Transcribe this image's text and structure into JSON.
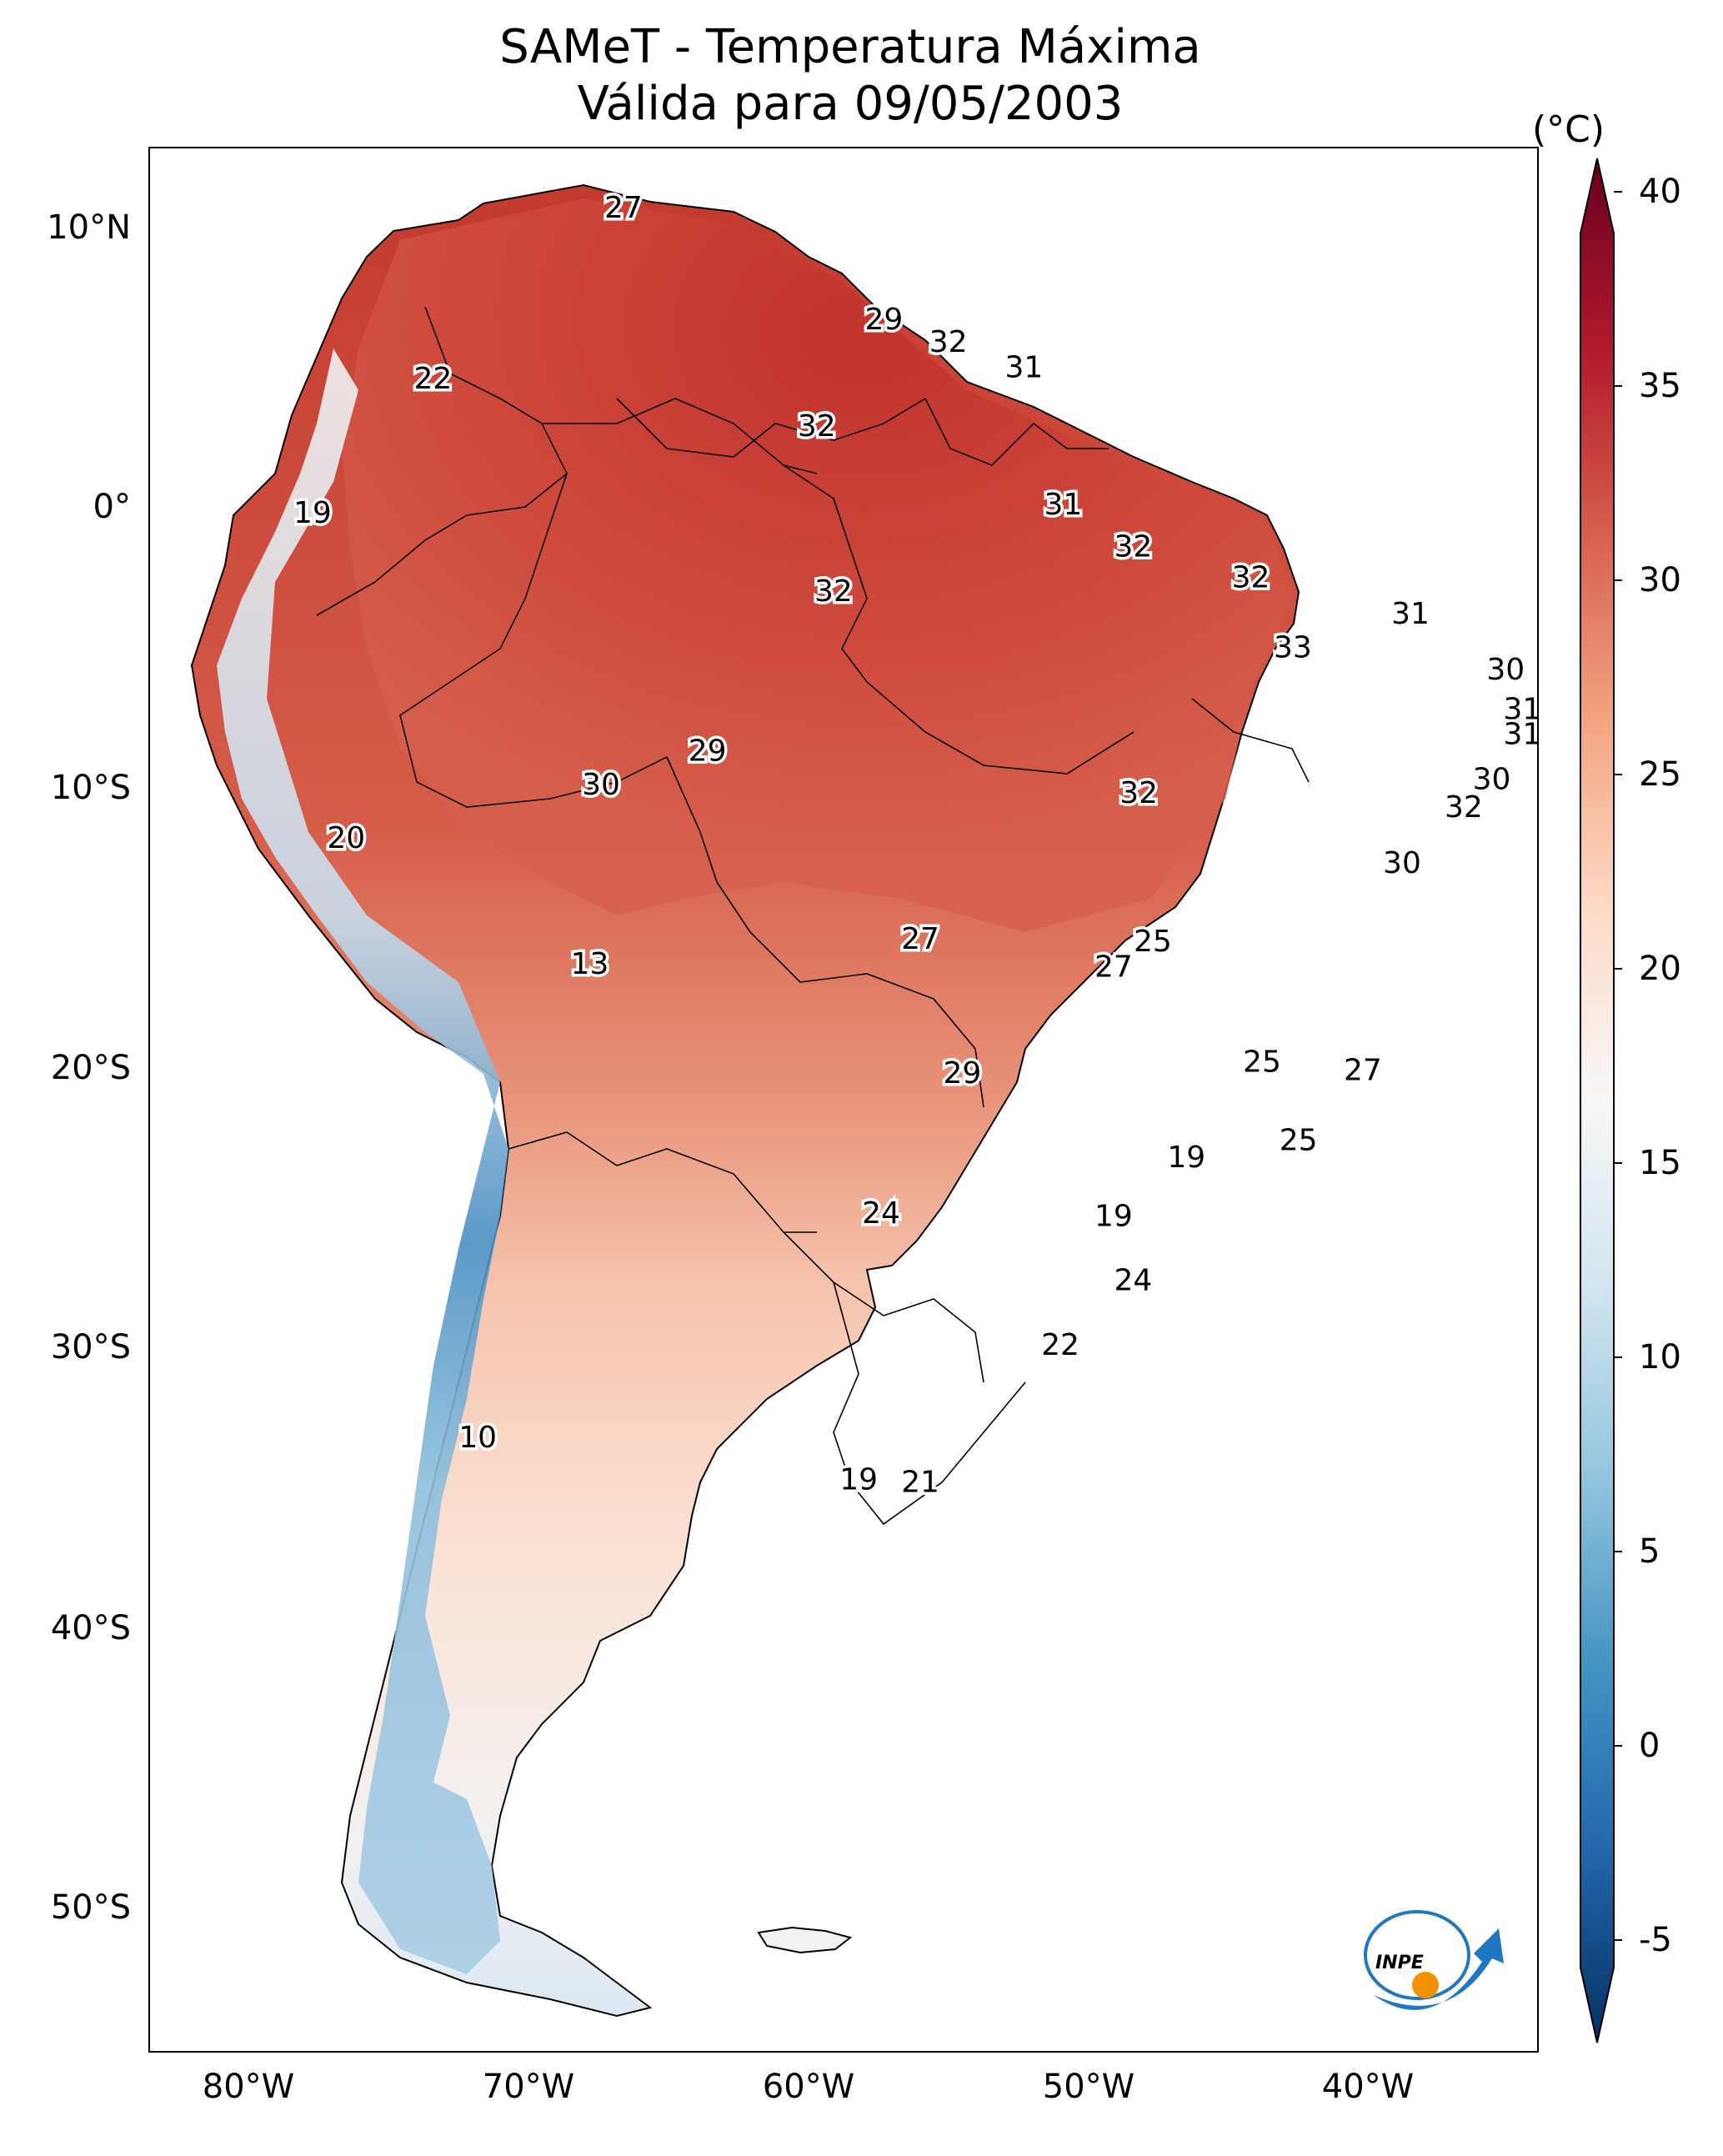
{
  "title": {
    "line1": "SAMeT - Temperatura Máxima",
    "line2": "Válida para 09/05/2003"
  },
  "colorbar": {
    "unit": "(°C)",
    "ticks": [
      "-5",
      "0",
      "5",
      "10",
      "15",
      "20",
      "25",
      "30",
      "35",
      "40"
    ],
    "min": -7,
    "max": 42,
    "colors": [
      "#053061",
      "#2166ac",
      "#4393c3",
      "#92c5de",
      "#d1e5f0",
      "#f7f7f7",
      "#fddbc7",
      "#f4a582",
      "#d6604d",
      "#b2182b",
      "#67001f"
    ]
  },
  "axes": {
    "lat_labels": [
      "10°N",
      "0°",
      "10°S",
      "20°S",
      "30°S",
      "40°S",
      "50°S"
    ],
    "lon_labels": [
      "80°W",
      "70°W",
      "60°W",
      "50°W",
      "40°W"
    ]
  },
  "map_labels": [
    {
      "text": "27",
      "lon": -66.7,
      "lat": 10.6
    },
    {
      "text": "22",
      "lon": -73.5,
      "lat": 4.5
    },
    {
      "text": "29",
      "lon": -57.4,
      "lat": 6.6
    },
    {
      "text": "32",
      "lon": -55.1,
      "lat": 5.8
    },
    {
      "text": "31",
      "lon": -52.4,
      "lat": 4.9
    },
    {
      "text": "32",
      "lon": -59.8,
      "lat": 2.8
    },
    {
      "text": "19",
      "lon": -77.8,
      "lat": -0.3
    },
    {
      "text": "31",
      "lon": -51.0,
      "lat": 0.0
    },
    {
      "text": "32",
      "lon": -48.5,
      "lat": -1.5
    },
    {
      "text": "32",
      "lon": -59.2,
      "lat": -3.1
    },
    {
      "text": "32",
      "lon": -44.3,
      "lat": -2.6
    },
    {
      "text": "31",
      "lon": -38.6,
      "lat": -3.9
    },
    {
      "text": "33",
      "lon": -42.8,
      "lat": -5.1
    },
    {
      "text": "30",
      "lon": -35.2,
      "lat": -5.9
    },
    {
      "text": "31",
      "lon": -34.6,
      "lat": -7.3
    },
    {
      "text": "31",
      "lon": -34.6,
      "lat": -8.2
    },
    {
      "text": "29",
      "lon": -63.7,
      "lat": -8.8
    },
    {
      "text": "30",
      "lon": -67.5,
      "lat": -10.0
    },
    {
      "text": "32",
      "lon": -48.3,
      "lat": -10.3
    },
    {
      "text": "30",
      "lon": -35.7,
      "lat": -9.8
    },
    {
      "text": "32",
      "lon": -36.7,
      "lat": -10.8
    },
    {
      "text": "20",
      "lon": -76.6,
      "lat": -11.9
    },
    {
      "text": "30",
      "lon": -38.9,
      "lat": -12.8
    },
    {
      "text": "27",
      "lon": -56.1,
      "lat": -15.5
    },
    {
      "text": "25",
      "lon": -47.8,
      "lat": -15.6
    },
    {
      "text": "27",
      "lon": -49.2,
      "lat": -16.5
    },
    {
      "text": "13",
      "lon": -67.9,
      "lat": -16.4
    },
    {
      "text": "25",
      "lon": -43.9,
      "lat": -19.9
    },
    {
      "text": "29",
      "lon": -54.6,
      "lat": -20.3
    },
    {
      "text": "27",
      "lon": -40.3,
      "lat": -20.2
    },
    {
      "text": "25",
      "lon": -42.6,
      "lat": -22.7
    },
    {
      "text": "19",
      "lon": -46.6,
      "lat": -23.3
    },
    {
      "text": "24",
      "lon": -57.5,
      "lat": -25.3
    },
    {
      "text": "19",
      "lon": -49.2,
      "lat": -25.4
    },
    {
      "text": "24",
      "lon": -48.5,
      "lat": -27.7
    },
    {
      "text": "22",
      "lon": -51.1,
      "lat": -30.0
    },
    {
      "text": "10",
      "lon": -71.9,
      "lat": -33.3
    },
    {
      "text": "19",
      "lon": -58.3,
      "lat": -34.8
    },
    {
      "text": "21",
      "lon": -56.1,
      "lat": -34.9
    }
  ],
  "logo": {
    "text": "INPE"
  }
}
